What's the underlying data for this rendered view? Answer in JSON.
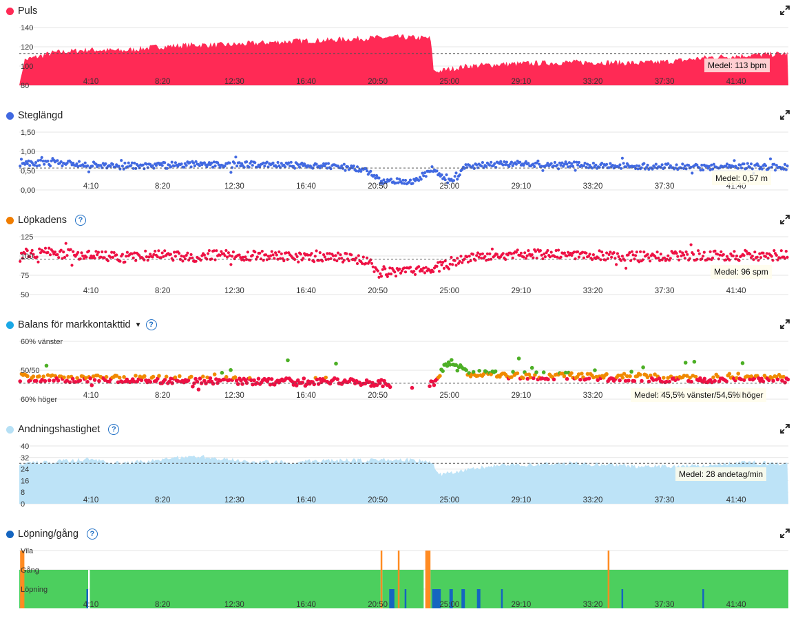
{
  "x_ticks": [
    "4:10",
    "8:20",
    "12:30",
    "16:40",
    "20:50",
    "25:00",
    "29:10",
    "33:20",
    "37:30",
    "41:40"
  ],
  "colors": {
    "heart": "#ff2a55",
    "stride": "#4169e1",
    "cadence_dot": "#f07d00",
    "cadence_marks": "#ee1144",
    "gct_dot": "#1aa8e6",
    "resp_dot": "#b6e0f5",
    "resp_fill": "#bde3f7",
    "runwalk_dot": "#1565c0",
    "run_green": "#4ccf5e",
    "walk_blue": "#1565c0",
    "rest_orange": "#ff8b22",
    "help": "#1f6fc5"
  },
  "panels": {
    "heart_rate": {
      "title": "Puls",
      "avg_label": "Medel: 113 bpm"
    },
    "stride": {
      "title": "Steglängd",
      "avg_label": "Medel: 0,57 m"
    },
    "cadence": {
      "title": "Löpkadens",
      "avg_label": "Medel: 96 spm"
    },
    "gct_balance": {
      "title": "Balans för markkontakttid",
      "avg_label": "Medel: 45,5% vänster/54,5% höger",
      "y_top": "60% vänster",
      "y_mid": "50/50",
      "y_bot": "60% höger"
    },
    "respiration": {
      "title": "Andningshastighet",
      "avg_label": "Medel: 28 andetag/min"
    },
    "run_walk": {
      "title": "Löpning/gång",
      "y_labels": [
        "Vila",
        "Gång",
        "Löpning"
      ]
    }
  },
  "chart_data": [
    {
      "type": "area",
      "title": "Puls",
      "x_unit": "min:sec",
      "y_ticks": [
        80,
        100,
        120,
        140
      ],
      "ylim": [
        80,
        140
      ],
      "average": 113,
      "x_min": [
        0,
        2,
        4,
        6,
        8,
        10,
        12,
        14,
        16,
        18,
        20,
        22,
        23.9,
        24.1,
        26,
        28,
        30,
        32,
        34,
        36,
        38,
        40,
        42,
        44.7
      ],
      "values": [
        105,
        114,
        117,
        116,
        120,
        122,
        122,
        124,
        126,
        127,
        129,
        130,
        129,
        94,
        100,
        102,
        103,
        104,
        104,
        103,
        105,
        109,
        111,
        113
      ]
    },
    {
      "type": "scatter",
      "title": "Steglängd",
      "y_ticks": [
        "0,00",
        "0,50",
        "1,00",
        "1,50"
      ],
      "ylim": [
        0,
        1.5
      ],
      "average": 0.57,
      "x_min": [
        0,
        2,
        4,
        6,
        8,
        10,
        12,
        14,
        16,
        18,
        20,
        21,
        22,
        23,
        24,
        25,
        26,
        28,
        30,
        32,
        34,
        36,
        38,
        40,
        42,
        44.7
      ],
      "values": [
        0.7,
        0.7,
        0.65,
        0.62,
        0.63,
        0.66,
        0.66,
        0.66,
        0.64,
        0.62,
        0.55,
        0.22,
        0.22,
        0.22,
        0.55,
        0.22,
        0.62,
        0.66,
        0.68,
        0.66,
        0.63,
        0.62,
        0.6,
        0.58,
        0.62,
        0.58
      ]
    },
    {
      "type": "scatter",
      "title": "Löpkadens",
      "y_ticks": [
        50,
        75,
        100,
        125
      ],
      "ylim": [
        50,
        125
      ],
      "average": 96,
      "x_min": [
        0,
        2,
        4,
        6,
        8,
        10,
        12,
        14,
        16,
        18,
        20,
        21,
        22,
        23,
        24,
        25,
        26,
        28,
        30,
        32,
        34,
        36,
        38,
        40,
        42,
        44.7
      ],
      "values": [
        103,
        104,
        100,
        98,
        101,
        99,
        102,
        100,
        98,
        100,
        95,
        80,
        78,
        80,
        85,
        92,
        98,
        101,
        102,
        103,
        100,
        99,
        100,
        101,
        100,
        101
      ]
    },
    {
      "type": "scatter",
      "title": "Balans för markkontakttid",
      "y_ticks": [
        "60% vänster",
        "50/50",
        "60% höger"
      ],
      "ylim": [
        40,
        60
      ],
      "average": 45.5,
      "x_min": [
        0,
        2,
        4,
        6,
        8,
        10,
        12,
        14,
        16,
        18,
        20,
        22,
        24,
        25,
        26,
        28,
        30,
        32,
        34,
        36,
        38,
        40,
        42,
        44.7
      ],
      "values": [
        47.5,
        47.0,
        47.2,
        47.0,
        46.8,
        46.6,
        46.5,
        46.0,
        46.2,
        46.4,
        46.0,
        45.0,
        45.0,
        53.0,
        49.0,
        48.5,
        48.0,
        48.0,
        47.5,
        47.5,
        47.0,
        47.0,
        47.8,
        47.0
      ]
    },
    {
      "type": "area",
      "title": "Andningshastighet",
      "y_ticks": [
        0,
        8,
        16,
        24,
        32,
        40
      ],
      "ylim": [
        0,
        40
      ],
      "average": 28,
      "x_min": [
        0,
        2,
        4,
        6,
        8,
        10,
        12,
        14,
        16,
        18,
        20,
        22,
        23.9,
        24.5,
        26,
        28,
        30,
        32,
        34,
        36,
        38,
        40,
        42,
        44.7
      ],
      "values": [
        28,
        29,
        31,
        28,
        30,
        33,
        31,
        29,
        29,
        30,
        30,
        31,
        29,
        20,
        24,
        27,
        27,
        28,
        27,
        26,
        26,
        27,
        29,
        27
      ]
    },
    {
      "type": "bar",
      "title": "Löpning/gång",
      "categories": [
        "Vila",
        "Gång",
        "Löpning"
      ],
      "segments": [
        {
          "state": "Löpning",
          "start_min": 0.0,
          "end_min": 4.0
        },
        {
          "state": "Vila",
          "start_min": 0.05,
          "end_min": 0.3
        },
        {
          "state": "Gång",
          "start_min": 3.9,
          "end_min": 4.0
        },
        {
          "state": "Löpning",
          "start_min": 4.1,
          "end_min": 21.0
        },
        {
          "state": "Vila",
          "start_min": 21.0,
          "end_min": 21.1
        },
        {
          "state": "Gång",
          "start_min": 21.5,
          "end_min": 21.8
        },
        {
          "state": "Vila",
          "start_min": 22.0,
          "end_min": 22.1
        },
        {
          "state": "Gång",
          "start_min": 22.4,
          "end_min": 22.5
        },
        {
          "state": "Löpning",
          "start_min": 21.1,
          "end_min": 23.5
        },
        {
          "state": "Vila",
          "start_min": 23.6,
          "end_min": 23.9
        },
        {
          "state": "Gång",
          "start_min": 24.0,
          "end_min": 24.5
        },
        {
          "state": "Löpning",
          "start_min": 23.9,
          "end_min": 44.7
        },
        {
          "state": "Gång",
          "start_min": 25.0,
          "end_min": 25.2
        },
        {
          "state": "Gång",
          "start_min": 25.7,
          "end_min": 25.9
        },
        {
          "state": "Gång",
          "start_min": 26.6,
          "end_min": 26.8
        },
        {
          "state": "Gång",
          "start_min": 28.0,
          "end_min": 28.1
        },
        {
          "state": "Vila",
          "start_min": 34.2,
          "end_min": 34.3
        },
        {
          "state": "Gång",
          "start_min": 35.0,
          "end_min": 35.1
        },
        {
          "state": "Gång",
          "start_min": 39.7,
          "end_min": 39.8
        }
      ]
    }
  ]
}
